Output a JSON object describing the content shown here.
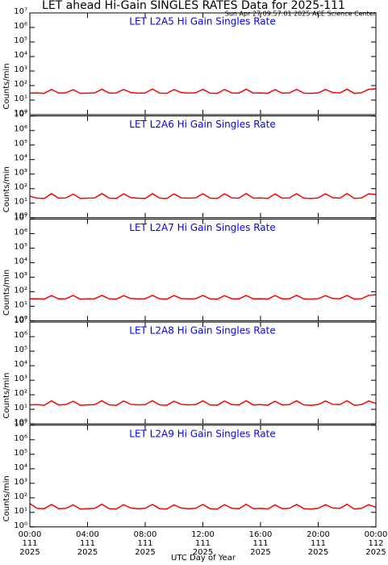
{
  "page": {
    "title": "LET ahead Hi-Gain SINGLES RATES Data for 2025-111",
    "timestamp": "Sun Apr 27 09:57:01 2025 ACE Science Center",
    "xlabel": "UTC Day of Year"
  },
  "chart_data": [
    {
      "type": "line",
      "title": "LET L2A5 Hi Gain Singles Rate",
      "ylabel": "Counts/min",
      "log_y": true,
      "x": [
        0,
        0.5,
        1,
        1.5,
        2,
        2.5,
        3,
        3.5,
        4,
        4.5,
        5,
        5.5,
        6,
        6.5,
        7,
        7.5,
        8,
        8.5,
        9,
        9.5,
        10,
        10.5,
        11,
        11.5,
        12,
        12.5,
        13,
        13.5,
        14,
        14.5,
        15,
        15.5,
        16,
        16.5,
        17,
        17.5,
        18,
        18.5,
        19,
        19.5,
        20,
        20.5,
        21,
        21.5,
        22,
        22.5,
        23,
        23.5,
        24
      ],
      "xlim": [
        0,
        24
      ],
      "xticks": [
        0,
        4,
        8,
        12,
        16,
        20,
        24
      ],
      "ylim": [
        1,
        10000000
      ],
      "yticks": [
        {
          "value": 1,
          "label": "10⁰"
        },
        {
          "value": 10,
          "label": "10¹"
        },
        {
          "value": 100,
          "label": "10²"
        },
        {
          "value": 1000,
          "label": "10³"
        },
        {
          "value": 10000,
          "label": "10⁴"
        },
        {
          "value": 100000,
          "label": "10⁵"
        },
        {
          "value": 1000000,
          "label": "10⁶"
        },
        {
          "value": 10000000,
          "label": "10⁷"
        }
      ],
      "series": [
        {
          "color": "#ff0000",
          "values": [
            30,
            31,
            29,
            55,
            30,
            32,
            52,
            29,
            30,
            31,
            56,
            30,
            31,
            54,
            33,
            30,
            31,
            57,
            30,
            29,
            53,
            33,
            30,
            32,
            55,
            30,
            29,
            54,
            31,
            30,
            56,
            30,
            31,
            29,
            53,
            30,
            31,
            55,
            30,
            29,
            31,
            54,
            33,
            31,
            56,
            29,
            32,
            55,
            60
          ]
        }
      ]
    },
    {
      "type": "line",
      "title": "LET L2A6 Hi Gain Singles Rate",
      "ylabel": "Counts/min",
      "log_y": true,
      "x": [
        0,
        0.5,
        1,
        1.5,
        2,
        2.5,
        3,
        3.5,
        4,
        4.5,
        5,
        5.5,
        6,
        6.5,
        7,
        7.5,
        8,
        8.5,
        9,
        9.5,
        10,
        10.5,
        11,
        11.5,
        12,
        12.5,
        13,
        13.5,
        14,
        14.5,
        15,
        15.5,
        16,
        16.5,
        17,
        17.5,
        18,
        18.5,
        19,
        19.5,
        20,
        20.5,
        21,
        21.5,
        22,
        22.5,
        23,
        23.5,
        24
      ],
      "xlim": [
        0,
        24
      ],
      "xticks": [
        0,
        4,
        8,
        12,
        16,
        20,
        24
      ],
      "ylim": [
        1,
        10000000
      ],
      "yticks": [
        {
          "value": 1,
          "label": "10⁰"
        },
        {
          "value": 10,
          "label": "10¹"
        },
        {
          "value": 100,
          "label": "10²"
        },
        {
          "value": 1000,
          "label": "10³"
        },
        {
          "value": 10000,
          "label": "10⁴"
        },
        {
          "value": 100000,
          "label": "10⁵"
        },
        {
          "value": 1000000,
          "label": "10⁶"
        },
        {
          "value": 10000000,
          "label": "10⁷"
        }
      ],
      "series": [
        {
          "color": "#ff0000",
          "values": [
            30,
            22,
            21,
            45,
            22,
            23,
            42,
            21,
            22,
            23,
            46,
            22,
            21,
            44,
            24,
            22,
            21,
            45,
            22,
            21,
            43,
            23,
            22,
            23,
            45,
            22,
            21,
            44,
            23,
            22,
            46,
            22,
            23,
            21,
            43,
            22,
            23,
            45,
            22,
            21,
            23,
            44,
            24,
            22,
            46,
            21,
            23,
            44,
            40
          ]
        }
      ]
    },
    {
      "type": "line",
      "title": "LET L2A7 Hi Gain Singles Rate",
      "ylabel": "Counts/min",
      "log_y": true,
      "x": [
        0,
        0.5,
        1,
        1.5,
        2,
        2.5,
        3,
        3.5,
        4,
        4.5,
        5,
        5.5,
        6,
        6.5,
        7,
        7.5,
        8,
        8.5,
        9,
        9.5,
        10,
        10.5,
        11,
        11.5,
        12,
        12.5,
        13,
        13.5,
        14,
        14.5,
        15,
        15.5,
        16,
        16.5,
        17,
        17.5,
        18,
        18.5,
        19,
        19.5,
        20,
        20.5,
        21,
        21.5,
        22,
        22.5,
        23,
        23.5,
        24
      ],
      "xlim": [
        0,
        24
      ],
      "xticks": [
        0,
        4,
        8,
        12,
        16,
        20,
        24
      ],
      "ylim": [
        1,
        10000000
      ],
      "yticks": [
        {
          "value": 1,
          "label": "10⁰"
        },
        {
          "value": 10,
          "label": "10¹"
        },
        {
          "value": 100,
          "label": "10²"
        },
        {
          "value": 1000,
          "label": "10³"
        },
        {
          "value": 10000,
          "label": "10⁴"
        },
        {
          "value": 100000,
          "label": "10⁵"
        },
        {
          "value": 1000000,
          "label": "10⁶"
        },
        {
          "value": 10000000,
          "label": "10⁷"
        }
      ],
      "series": [
        {
          "color": "#ff0000",
          "values": [
            32,
            33,
            31,
            54,
            32,
            33,
            55,
            31,
            32,
            33,
            56,
            32,
            31,
            53,
            34,
            32,
            33,
            56,
            32,
            31,
            54,
            34,
            32,
            33,
            55,
            32,
            31,
            53,
            33,
            32,
            55,
            32,
            33,
            31,
            54,
            32,
            33,
            56,
            32,
            31,
            33,
            53,
            34,
            33,
            55,
            31,
            33,
            56,
            62
          ]
        }
      ]
    },
    {
      "type": "line",
      "title": "LET L2A8 Hi Gain Singles Rate",
      "ylabel": "Counts/min",
      "log_y": true,
      "x": [
        0,
        0.5,
        1,
        1.5,
        2,
        2.5,
        3,
        3.5,
        4,
        4.5,
        5,
        5.5,
        6,
        6.5,
        7,
        7.5,
        8,
        8.5,
        9,
        9.5,
        10,
        10.5,
        11,
        11.5,
        12,
        12.5,
        13,
        13.5,
        14,
        14.5,
        15,
        15.5,
        16,
        16.5,
        17,
        17.5,
        18,
        18.5,
        19,
        19.5,
        20,
        20.5,
        21,
        21.5,
        22,
        22.5,
        23,
        23.5,
        24
      ],
      "xlim": [
        0,
        24
      ],
      "xticks": [
        0,
        4,
        8,
        12,
        16,
        20,
        24
      ],
      "ylim": [
        1,
        10000000
      ],
      "yticks": [
        {
          "value": 1,
          "label": "10⁰"
        },
        {
          "value": 10,
          "label": "10¹"
        },
        {
          "value": 100,
          "label": "10²"
        },
        {
          "value": 1000,
          "label": "10³"
        },
        {
          "value": 10000,
          "label": "10⁴"
        },
        {
          "value": 100000,
          "label": "10⁵"
        },
        {
          "value": 1000000,
          "label": "10⁶"
        },
        {
          "value": 10000000,
          "label": "10⁷"
        }
      ],
      "series": [
        {
          "color": "#ff0000",
          "values": [
            20,
            21,
            19,
            38,
            20,
            21,
            36,
            19,
            20,
            21,
            39,
            20,
            19,
            37,
            22,
            20,
            21,
            39,
            20,
            19,
            36,
            22,
            20,
            21,
            38,
            20,
            19,
            37,
            21,
            20,
            39,
            20,
            21,
            19,
            36,
            20,
            21,
            38,
            20,
            19,
            21,
            37,
            22,
            21,
            39,
            19,
            21,
            37,
            25
          ]
        }
      ]
    },
    {
      "type": "line",
      "title": "LET L2A9 Hi Gain Singles Rate",
      "ylabel": "Counts/min",
      "log_y": true,
      "x": [
        0,
        0.5,
        1,
        1.5,
        2,
        2.5,
        3,
        3.5,
        4,
        4.5,
        5,
        5.5,
        6,
        6.5,
        7,
        7.5,
        8,
        8.5,
        9,
        9.5,
        10,
        10.5,
        11,
        11.5,
        12,
        12.5,
        13,
        13.5,
        14,
        14.5,
        15,
        15.5,
        16,
        16.5,
        17,
        17.5,
        18,
        18.5,
        19,
        19.5,
        20,
        20.5,
        21,
        21.5,
        22,
        22.5,
        23,
        23.5,
        24
      ],
      "xlim": [
        0,
        24
      ],
      "xticks": [
        {
          "value": 0,
          "label": "00:00\n111\n2025"
        },
        {
          "value": 4,
          "label": "04:00\n111\n2025"
        },
        {
          "value": 8,
          "label": "08:00\n111\n2025"
        },
        {
          "value": 12,
          "label": "12:00\n111\n2025"
        },
        {
          "value": 16,
          "label": "16:00\n111\n2025"
        },
        {
          "value": 20,
          "label": "20:00\n111\n2025"
        },
        {
          "value": 24,
          "label": "00:00\n112\n2025"
        }
      ],
      "ylim": [
        1,
        10000000
      ],
      "yticks": [
        {
          "value": 1,
          "label": "10⁰"
        },
        {
          "value": 10,
          "label": "10¹"
        },
        {
          "value": 100,
          "label": "10²"
        },
        {
          "value": 1000,
          "label": "10³"
        },
        {
          "value": 10000,
          "label": "10⁴"
        },
        {
          "value": 100000,
          "label": "10⁵"
        },
        {
          "value": 1000000,
          "label": "10⁶"
        },
        {
          "value": 10000000,
          "label": "10⁷"
        }
      ],
      "series": [
        {
          "color": "#ff0000",
          "values": [
            40,
            19,
            18,
            35,
            18,
            19,
            33,
            17,
            18,
            19,
            36,
            18,
            17,
            34,
            20,
            18,
            19,
            35,
            18,
            17,
            33,
            20,
            18,
            19,
            35,
            18,
            17,
            34,
            19,
            18,
            36,
            18,
            19,
            17,
            33,
            18,
            19,
            35,
            18,
            17,
            19,
            34,
            20,
            19,
            36,
            17,
            19,
            34,
            22
          ]
        }
      ]
    }
  ]
}
